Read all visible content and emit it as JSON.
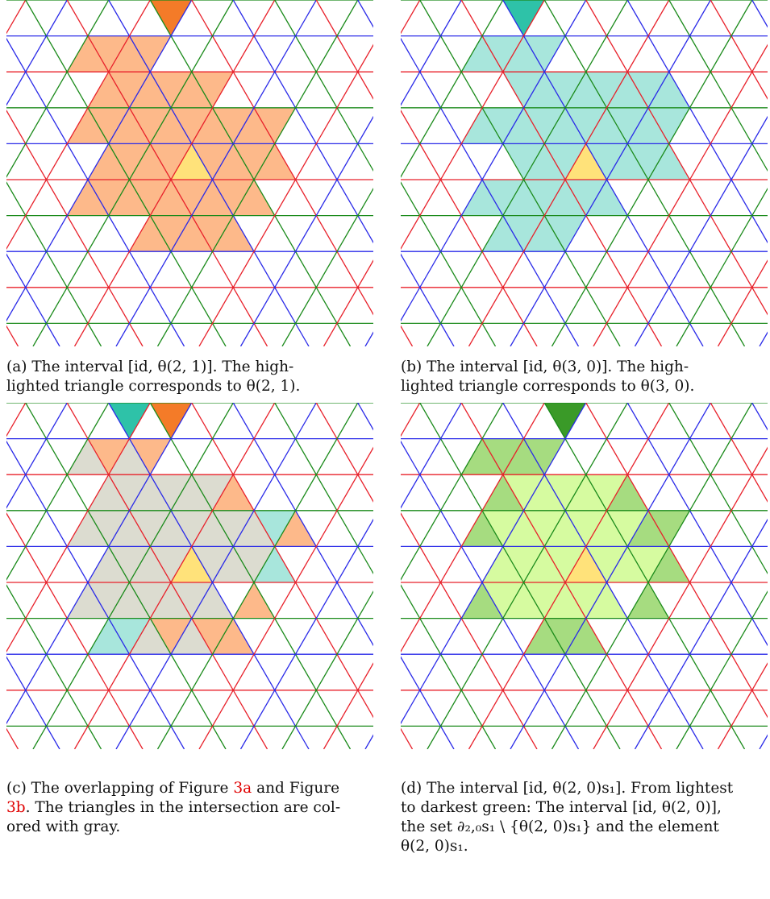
{
  "colors": {
    "line_red": "#e8202a",
    "line_green": "#1a8a1a",
    "line_blue": "#2a2ae8",
    "yellow": "#ffe27a",
    "orange_light": "#fdb98a",
    "orange_dark": "#f47b28",
    "teal_light": "#a8e6dc",
    "teal_dark": "#2ec2a8",
    "gray": "#dcdcd0",
    "green_light": "#d6fba0",
    "green_mid": "#a6dc80",
    "green_dark": "#3a9a28"
  },
  "captions": {
    "a": {
      "lines": [
        "(a) The interval [id, θ(2, 1)].   The high-",
        "lighted triangle corresponds to θ(2, 1)."
      ]
    },
    "b": {
      "lines": [
        "(b) The interval [id, θ(3, 0)].   The high-",
        "lighted triangle corresponds to θ(3, 0)."
      ]
    },
    "c": {
      "line1_pre": "(c) The overlapping of Figure ",
      "ref1": "3a",
      "line1_post": " and Figure",
      "ref2": "3b",
      "line2_post": ". The triangles in the intersection are col-",
      "line3": "ored with gray."
    },
    "d": {
      "lines": [
        "(d) The interval [id, θ(2, 0)s₁]. From lightest",
        "to darkest green: The interval [id, θ(2, 0)],",
        "the set ∂₂,₀s₁ \\ {θ(2, 0)s₁} and the element",
        "θ(2, 0)s₁."
      ]
    }
  }
}
